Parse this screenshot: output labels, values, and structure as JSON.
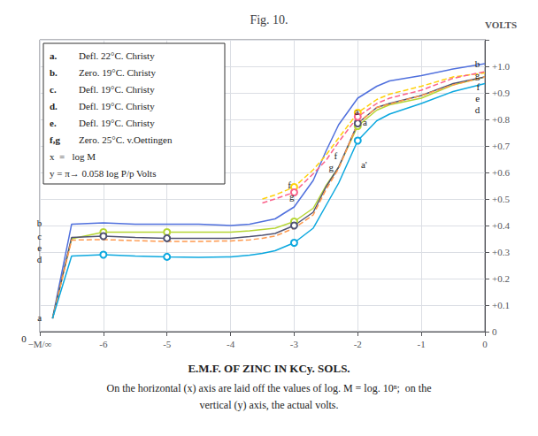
{
  "chart_data": {
    "type": "line",
    "title": "Fig. 10.",
    "ylabel": "VOLTS",
    "caption": [
      "E.M.F. OF ZINC IN KCy. SOLS.",
      "On the horizontal (x) axis are laid off the values of log. M = log. 10ⁿ;  on the",
      "vertical (y) axis, the actual volts."
    ],
    "xlim": [
      -7.0,
      0.0
    ],
    "ylim": [
      0.0,
      1.1
    ],
    "xticks": [
      {
        "value": -7,
        "label": "−M/∞"
      },
      -6,
      -5,
      -4,
      -3,
      -2,
      -1,
      0
    ],
    "yticks": [
      0,
      {
        "value": 0.1,
        "label": "+0.1"
      },
      {
        "value": 0.2,
        "label": "+0.2"
      },
      {
        "value": 0.3,
        "label": "+0.3"
      },
      {
        "value": 0.4,
        "label": "+0.4"
      },
      {
        "value": 0.5,
        "label": "+0.5"
      },
      {
        "value": 0.6,
        "label": "+0.6"
      },
      {
        "value": 0.7,
        "label": "+0.7"
      },
      {
        "value": 0.8,
        "label": "+0.8"
      },
      {
        "value": 0.9,
        "label": "+0.9"
      },
      {
        "value": 1.0,
        "label": "+1.0"
      }
    ],
    "grid": true,
    "series": [
      {
        "name": "b",
        "line_style": "solid",
        "x": [
          -6.8,
          -6.5,
          -6.0,
          -5.5,
          -5.0,
          -4.5,
          -4.0,
          -3.7,
          -3.5,
          -3.3,
          -3.0,
          -2.7,
          -2.5,
          -2.3,
          -2.0,
          -1.7,
          -1.5,
          -1.0,
          -0.5,
          0.0
        ],
        "values": [
          0.05,
          0.405,
          0.41,
          0.405,
          0.405,
          0.405,
          0.4,
          0.405,
          0.415,
          0.425,
          0.47,
          0.57,
          0.68,
          0.78,
          0.88,
          0.925,
          0.945,
          0.965,
          0.99,
          1.01
        ]
      },
      {
        "name": "a",
        "line_style": "solid",
        "marker": "circle",
        "marked_x": [
          -6.0,
          -5.0,
          -3.0,
          -2.0
        ],
        "x": [
          -6.8,
          -6.5,
          -6.0,
          -5.5,
          -5.0,
          -4.5,
          -4.0,
          -3.7,
          -3.5,
          -3.3,
          -3.0,
          -2.7,
          -2.5,
          -2.3,
          -2.0,
          -1.7,
          -1.5,
          -1.0,
          -0.5,
          0.0
        ],
        "values": [
          0.05,
          0.35,
          0.375,
          0.375,
          0.375,
          0.375,
          0.375,
          0.38,
          0.385,
          0.39,
          0.415,
          0.465,
          0.55,
          0.62,
          0.775,
          0.835,
          0.855,
          0.88,
          0.93,
          0.96
        ]
      },
      {
        "name": "c",
        "line_style": "solid",
        "marker": "circle",
        "marked_x": [
          -6.0,
          -5.0,
          -3.0,
          -2.0
        ],
        "x": [
          -6.8,
          -6.5,
          -6.0,
          -5.5,
          -5.0,
          -4.5,
          -4.0,
          -3.7,
          -3.5,
          -3.3,
          -3.0,
          -2.7,
          -2.5,
          -2.3,
          -2.0,
          -1.7,
          -1.5,
          -1.0,
          -0.5,
          0.0
        ],
        "values": [
          0.05,
          0.355,
          0.36,
          0.355,
          0.352,
          0.352,
          0.352,
          0.358,
          0.363,
          0.37,
          0.4,
          0.45,
          0.545,
          0.62,
          0.785,
          0.845,
          0.86,
          0.89,
          0.935,
          0.96
        ]
      },
      {
        "name": "e",
        "line_style": "dashed",
        "x": [
          -6.8,
          -6.5,
          -6.0,
          -5.5,
          -5.0,
          -4.5,
          -4.0,
          -3.7,
          -3.5,
          -3.3,
          -3.0,
          -2.7,
          -2.5,
          -2.3,
          -2.0,
          -1.7,
          -1.5,
          -1.0,
          -0.5,
          0.0
        ],
        "values": [
          0.05,
          0.345,
          0.347,
          0.343,
          0.34,
          0.34,
          0.342,
          0.346,
          0.352,
          0.36,
          0.39,
          0.44,
          0.535,
          0.615,
          0.785,
          0.845,
          0.858,
          0.89,
          0.93,
          0.96
        ]
      },
      {
        "name": "d",
        "line_style": "solid",
        "marker": "circle",
        "marked_x": [
          -6.0,
          -5.0,
          -3.0,
          -2.0
        ],
        "x": [
          -6.8,
          -6.5,
          -6.0,
          -5.5,
          -5.0,
          -4.5,
          -4.0,
          -3.7,
          -3.5,
          -3.3,
          -3.0,
          -2.7,
          -2.5,
          -2.3,
          -2.0,
          -1.7,
          -1.5,
          -1.0,
          -0.5,
          0.0
        ],
        "values": [
          0.05,
          0.285,
          0.29,
          0.285,
          0.282,
          0.28,
          0.282,
          0.288,
          0.295,
          0.305,
          0.335,
          0.39,
          0.475,
          0.56,
          0.72,
          0.795,
          0.82,
          0.86,
          0.905,
          0.935
        ]
      },
      {
        "name": "f",
        "line_style": "dashed",
        "marker": "circle",
        "marked_x": [
          -3.0,
          -2.0
        ],
        "x": [
          -3.5,
          -3.3,
          -3.0,
          -2.7,
          -2.5,
          -2.3,
          -2.0,
          -1.7,
          -1.5,
          -1.0,
          -0.5,
          0.0
        ],
        "values": [
          0.5,
          0.515,
          0.545,
          0.61,
          0.665,
          0.73,
          0.825,
          0.875,
          0.895,
          0.925,
          0.96,
          0.975
        ]
      },
      {
        "name": "g",
        "line_style": "dashed",
        "marker": "circle",
        "marked_x": [
          -3.0,
          -2.0
        ],
        "x": [
          -3.5,
          -3.3,
          -3.0,
          -2.7,
          -2.5,
          -2.3,
          -2.0,
          -1.7,
          -1.5,
          -1.0,
          -0.5,
          0.0
        ],
        "values": [
          0.485,
          0.5,
          0.525,
          0.595,
          0.645,
          0.715,
          0.81,
          0.86,
          0.88,
          0.91,
          0.955,
          0.98
        ]
      }
    ],
    "key": {
      "rows": [
        [
          "a.",
          "Defl. 22°C. Christy"
        ],
        [
          "b.",
          "Zero. 19°C. Christy"
        ],
        [
          "c.",
          "Defl. 19°C. Christy"
        ],
        [
          "d.",
          "Defl. 19°C. Christy"
        ],
        [
          "e.",
          "Defl. 19°C. Christy"
        ],
        [
          "f,g",
          "Zero. 25°C. v.Oettingen"
        ]
      ],
      "lines": [
        "x  =   log M",
        "y = π→ 0.058 log P/p Volts"
      ]
    },
    "annotations": [
      {
        "text": "b",
        "x": -0.08,
        "y": 1.01,
        "align": "right"
      },
      {
        "text": "g",
        "x": -0.08,
        "y": 0.982,
        "align": "right"
      },
      {
        "text": "f",
        "x": -0.08,
        "y": 0.972,
        "align": "right"
      },
      {
        "text": "e",
        "x": -0.08,
        "y": 0.958,
        "align": "right"
      },
      {
        "text": "d",
        "x": -0.08,
        "y": 0.933,
        "align": "right"
      },
      {
        "text": "a",
        "x": -1.92,
        "y": 0.79,
        "align": "left"
      },
      {
        "text": "a",
        "x": -2.05,
        "y": 0.83,
        "align": "left"
      },
      {
        "text": "g",
        "x": -2.38,
        "y": 0.648,
        "align": "right"
      },
      {
        "text": "f",
        "x": -2.32,
        "y": 0.665,
        "align": "right"
      },
      {
        "text": "a'",
        "x": -1.95,
        "y": 0.63,
        "align": "left"
      },
      {
        "text": "f",
        "x": -3.05,
        "y": 0.555,
        "align": "right"
      },
      {
        "text": "g",
        "x": -3.0,
        "y": 0.535,
        "align": "right"
      },
      {
        "text": "b",
        "x": -6.97,
        "y": 0.41,
        "align": "right"
      },
      {
        "text": "e",
        "x": -6.97,
        "y": 0.347,
        "align": "right"
      },
      {
        "text": "c",
        "x": -6.97,
        "y": 0.359,
        "align": "right"
      },
      {
        "text": "d",
        "x": -6.97,
        "y": 0.288,
        "align": "right"
      },
      {
        "text": "a",
        "x": -6.97,
        "y": 0.055,
        "align": "right"
      },
      {
        "text": "0",
        "x": -7.25,
        "y": -0.025,
        "align": "center"
      }
    ]
  }
}
